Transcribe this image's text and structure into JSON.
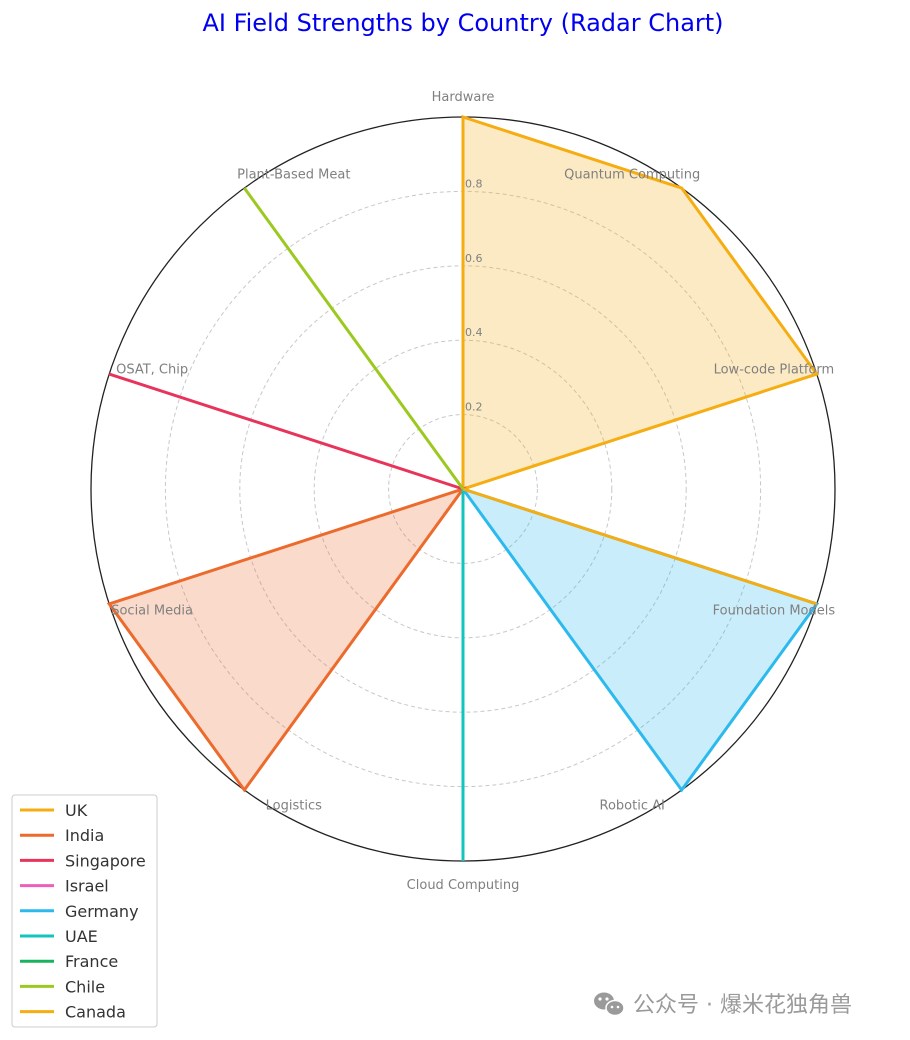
{
  "chart_data": {
    "type": "radar",
    "title": "AI Field Strengths by Country (Radar Chart)",
    "axes": [
      "Hardware",
      "Quantum Computing",
      "Low-code Platform",
      "Foundation Models",
      "Robotic AI",
      "Cloud Computing",
      "Logistics",
      "Social Media",
      "OSAT, Chip",
      "Plant-Based Meat"
    ],
    "radial_ticks": [
      "0.2",
      "0.4",
      "0.6",
      "0.8"
    ],
    "tick_values": [
      0.2,
      0.4,
      0.6,
      0.8
    ],
    "rlim": [
      0,
      1
    ],
    "grid": true,
    "legend_position": "bottom-left",
    "series": [
      {
        "name": "UK",
        "color": "#f5ad12",
        "values": [
          1,
          1,
          1,
          0,
          0,
          0,
          0,
          0,
          0,
          0
        ],
        "filled": true
      },
      {
        "name": "India",
        "color": "#ec6a2c",
        "values": [
          0,
          0,
          0,
          0,
          0,
          0,
          1,
          1,
          0,
          0
        ],
        "filled": true
      },
      {
        "name": "Singapore",
        "color": "#e8345a",
        "values": [
          0,
          0,
          0,
          0,
          0,
          0,
          0,
          0,
          1,
          0
        ],
        "filled": false
      },
      {
        "name": "Israel",
        "color": "#ee5fb8",
        "values": [
          0,
          0,
          0,
          0,
          0,
          0,
          0,
          0,
          0,
          0
        ],
        "filled": false
      },
      {
        "name": "Germany",
        "color": "#2bb9ee",
        "values": [
          0,
          0,
          0,
          1,
          1,
          0,
          0,
          0,
          0,
          0
        ],
        "filled": true
      },
      {
        "name": "UAE",
        "color": "#13c4bd",
        "values": [
          0,
          0,
          0,
          0,
          0,
          1,
          0,
          0,
          0,
          0
        ],
        "filled": false
      },
      {
        "name": "France",
        "color": "#18b35e",
        "values": [
          0,
          0,
          0,
          0,
          0,
          0,
          0,
          0,
          0,
          0
        ],
        "filled": false
      },
      {
        "name": "Chile",
        "color": "#9cc920",
        "values": [
          0,
          0,
          0,
          0,
          0,
          0,
          0,
          0,
          0,
          1
        ],
        "filled": false
      },
      {
        "name": "Canada",
        "color": "#f5ad12",
        "values": [
          0,
          0,
          0,
          1,
          0,
          0,
          0,
          0,
          0,
          0
        ],
        "filled": false
      }
    ]
  },
  "watermark": {
    "text": "公众号 · 爆米花独角兽",
    "icon": "wechat-icon"
  }
}
